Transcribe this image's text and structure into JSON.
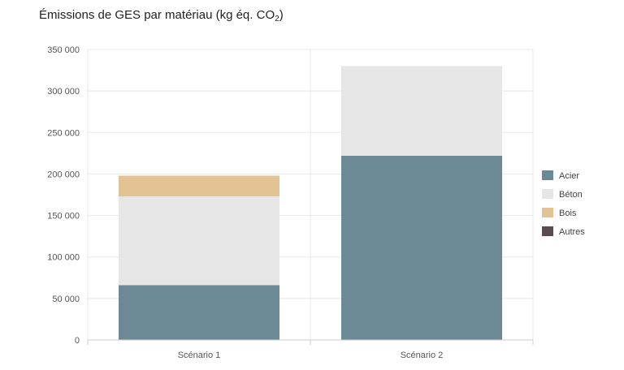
{
  "chart_data": {
    "type": "bar",
    "stacked": true,
    "title": "Émissions de GES par matériau (kg éq. CO",
    "title_subscript": "2",
    "title_suffix": ")",
    "xlabel": "",
    "ylabel": "",
    "categories": [
      "Scénario 1",
      "Scénario 2"
    ],
    "series": [
      {
        "name": "Acier",
        "color": "#6b8a96",
        "values": [
          66000,
          222000
        ]
      },
      {
        "name": "Béton",
        "color": "#e6e6e6",
        "values": [
          107000,
          108000
        ]
      },
      {
        "name": "Bois",
        "color": "#e3c393",
        "values": [
          25000,
          0
        ]
      },
      {
        "name": "Autres",
        "color": "#5a4a52",
        "values": [
          0,
          0
        ]
      }
    ],
    "ylim": [
      0,
      350000
    ],
    "yticks": [
      0,
      50000,
      100000,
      150000,
      200000,
      250000,
      300000,
      350000
    ],
    "ytick_labels": [
      "0",
      "50 000",
      "100 000",
      "150 000",
      "200 000",
      "250 000",
      "300 000",
      "350 000"
    ],
    "grid": true,
    "legend_position": "right"
  }
}
